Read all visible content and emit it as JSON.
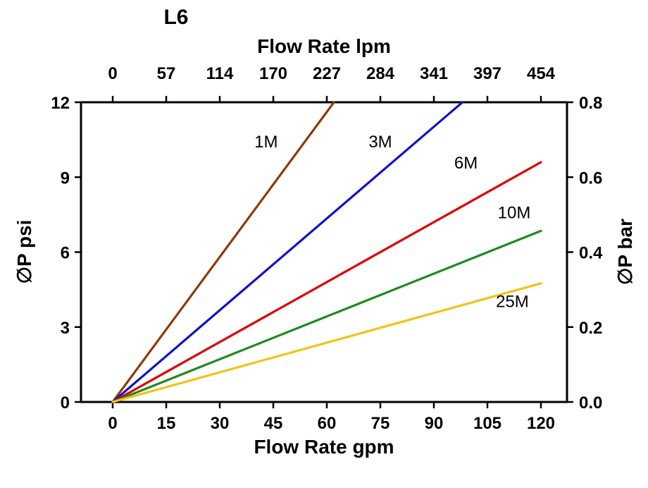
{
  "chart_data": {
    "type": "line",
    "title": "L6",
    "grid": false,
    "legend_position": "inline-labels",
    "axes": {
      "bottom": {
        "label": "Flow Rate gpm",
        "ticks": [
          0,
          15,
          30,
          45,
          60,
          75,
          90,
          105,
          120
        ],
        "range": [
          0,
          120
        ]
      },
      "top": {
        "label": "Flow Rate lpm",
        "tick_labels": [
          "0",
          "57",
          "114",
          "170",
          "227",
          "284",
          "341",
          "397",
          "454"
        ]
      },
      "left": {
        "label": "∅P psi",
        "ticks": [
          0,
          3,
          6,
          9,
          12
        ],
        "range": [
          0,
          12
        ]
      },
      "right": {
        "label": "∅P bar",
        "tick_labels": [
          "0.0",
          "0.2",
          "0.4",
          "0.6",
          "0.8"
        ],
        "tick_values": [
          0,
          0.2,
          0.4,
          0.6,
          0.8
        ],
        "range": [
          0,
          0.8
        ]
      }
    },
    "series": [
      {
        "name": "1M",
        "color": "#8f3a0a",
        "points": [
          [
            0,
            0
          ],
          [
            62,
            12
          ]
        ],
        "label_pos": [
          43,
          10.2
        ]
      },
      {
        "name": "3M",
        "color": "#1111cc",
        "points": [
          [
            0,
            0
          ],
          [
            98,
            12
          ]
        ],
        "label_pos": [
          75,
          10.2
        ]
      },
      {
        "name": "6M",
        "color": "#e00000",
        "points": [
          [
            0,
            0
          ],
          [
            120,
            9.6
          ]
        ],
        "label_pos": [
          99,
          9.35
        ]
      },
      {
        "name": "10M",
        "color": "#1e8a1e",
        "points": [
          [
            0,
            0
          ],
          [
            120,
            6.85
          ]
        ],
        "label_pos": [
          112.5,
          7.35
        ]
      },
      {
        "name": "25M",
        "color": "#f0c419",
        "points": [
          [
            0,
            0
          ],
          [
            120,
            4.75
          ]
        ],
        "label_pos": [
          112,
          3.8
        ]
      }
    ]
  }
}
